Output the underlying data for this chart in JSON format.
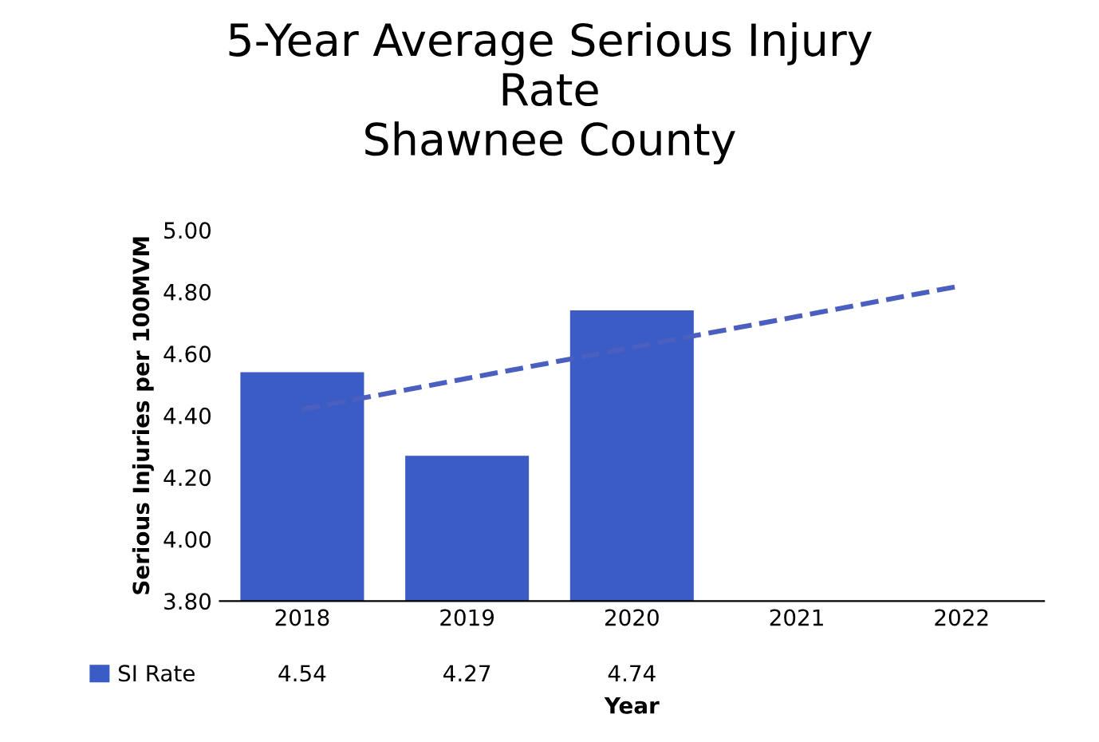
{
  "chart_data": {
    "type": "bar",
    "title": "5-Year Average Serious Injury\nRate\nShawnee County",
    "xlabel": "Year",
    "ylabel": "Serious Injuries per 100MVM",
    "categories": [
      "2018",
      "2019",
      "2020",
      "2021",
      "2022"
    ],
    "series": [
      {
        "name": "SI Rate",
        "color": "#3a5cc4",
        "values": [
          4.54,
          4.27,
          4.74,
          null,
          null
        ],
        "value_labels": [
          "4.54",
          "4.27",
          "4.74",
          null,
          null
        ]
      },
      {
        "type": "line",
        "values": [
          4.42,
          4.52,
          4.62,
          4.72,
          4.82
        ],
        "color": "#4a5fc0",
        "line_style": "dashed"
      }
    ],
    "ylim": [
      3.8,
      5.0
    ],
    "yticks": [
      {
        "value": 3.8,
        "label": "3.80"
      },
      {
        "value": 4.0,
        "label": "4.00"
      },
      {
        "value": 4.2,
        "label": "4.20"
      },
      {
        "value": 4.4,
        "label": "4.40"
      },
      {
        "value": 4.6,
        "label": "4.60"
      },
      {
        "value": 4.8,
        "label": "4.80"
      },
      {
        "value": 5.0,
        "label": "5.00"
      }
    ],
    "legend": "bottom left",
    "grid": false
  }
}
